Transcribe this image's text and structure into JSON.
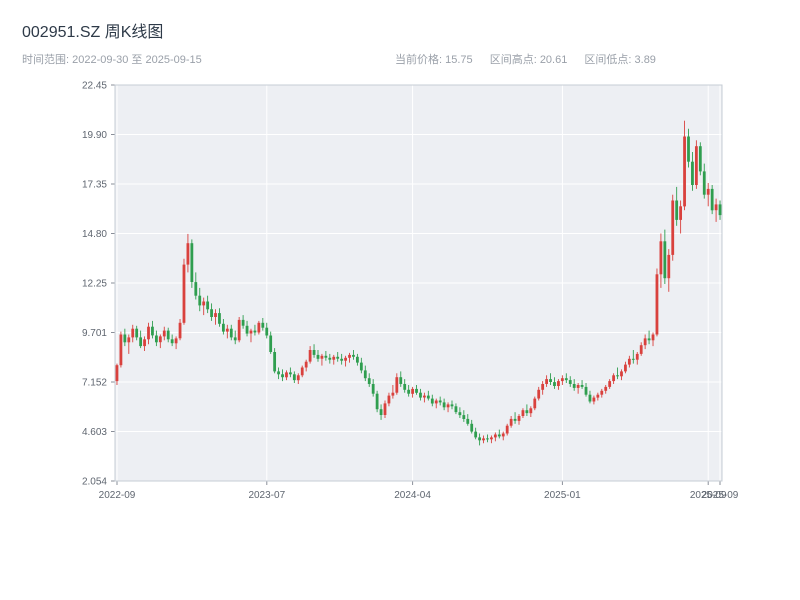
{
  "header": {
    "title": "002951.SZ 周K线图",
    "time_range_label": "时间范围: 2022-09-30 至 2025-09-15",
    "stats": [
      "当前价格: 15.75",
      "区间高点: 20.61",
      "区间低点: 3.89"
    ]
  },
  "chart_data": {
    "type": "candlestick",
    "title": "002951.SZ 周K线图",
    "interval": "weekly",
    "time_range": [
      "2022-09-30",
      "2025-09-15"
    ],
    "current_price": 15.75,
    "range_high": 20.61,
    "range_low": 3.89,
    "ylim": [
      2.054,
      22.45
    ],
    "grid": true,
    "y_ticks": [
      {
        "value": 2.054,
        "label": "2.054"
      },
      {
        "value": 4.603,
        "label": "4.603"
      },
      {
        "value": 7.152,
        "label": "7.152"
      },
      {
        "value": 9.701,
        "label": "9.701"
      },
      {
        "value": 12.25,
        "label": "12.25"
      },
      {
        "value": 14.8,
        "label": "14.80"
      },
      {
        "value": 17.35,
        "label": "17.35"
      },
      {
        "value": 19.9,
        "label": "19.90"
      },
      {
        "value": 22.45,
        "label": "22.45"
      }
    ],
    "x_ticks": [
      {
        "index": 0,
        "label": "2022-09"
      },
      {
        "index": 38,
        "label": "2023-07"
      },
      {
        "index": 75,
        "label": "2024-04"
      },
      {
        "index": 113,
        "label": "2025-01"
      },
      {
        "index": 150,
        "label": "2025-09"
      },
      {
        "index": 153,
        "label": "2025-09"
      }
    ],
    "colors": {
      "up": "#d9413d",
      "down": "#2f9e4f",
      "plot_bg": "#edeff3",
      "grid": "#ffffff",
      "frame": "#c6ccd4",
      "tick": "#8a8f99"
    },
    "candles": [
      [
        7.2,
        8.1,
        7.0,
        8.02
      ],
      [
        8.02,
        9.75,
        7.9,
        9.6
      ],
      [
        9.6,
        9.9,
        9.0,
        9.2
      ],
      [
        9.2,
        9.6,
        8.6,
        9.45
      ],
      [
        9.45,
        10.1,
        9.2,
        9.9
      ],
      [
        9.9,
        10.05,
        9.3,
        9.45
      ],
      [
        9.45,
        9.8,
        8.9,
        9.0
      ],
      [
        9.0,
        9.5,
        8.75,
        9.35
      ],
      [
        9.35,
        10.2,
        9.1,
        10.0
      ],
      [
        10.0,
        10.3,
        9.4,
        9.55
      ],
      [
        9.55,
        9.8,
        9.0,
        9.2
      ],
      [
        9.2,
        9.6,
        8.9,
        9.5
      ],
      [
        9.5,
        10.0,
        9.3,
        9.8
      ],
      [
        9.8,
        9.95,
        9.2,
        9.35
      ],
      [
        9.35,
        9.6,
        9.0,
        9.15
      ],
      [
        9.15,
        9.5,
        8.85,
        9.4
      ],
      [
        9.4,
        10.4,
        9.3,
        10.2
      ],
      [
        10.2,
        13.5,
        10.1,
        13.2
      ],
      [
        13.2,
        14.78,
        12.8,
        14.3
      ],
      [
        14.3,
        14.5,
        12.0,
        12.3
      ],
      [
        12.3,
        12.8,
        11.4,
        11.6
      ],
      [
        11.6,
        12.0,
        10.8,
        11.1
      ],
      [
        11.1,
        11.5,
        10.6,
        11.3
      ],
      [
        11.3,
        11.6,
        10.7,
        10.9
      ],
      [
        10.9,
        11.2,
        10.3,
        10.5
      ],
      [
        10.5,
        10.9,
        10.1,
        10.7
      ],
      [
        10.7,
        10.95,
        10.0,
        10.15
      ],
      [
        10.15,
        10.4,
        9.6,
        9.75
      ],
      [
        9.75,
        10.1,
        9.4,
        9.9
      ],
      [
        9.9,
        10.1,
        9.3,
        9.45
      ],
      [
        9.45,
        9.8,
        9.1,
        9.3
      ],
      [
        9.3,
        10.5,
        9.2,
        10.35
      ],
      [
        10.35,
        10.6,
        9.9,
        10.05
      ],
      [
        10.05,
        10.3,
        9.5,
        9.65
      ],
      [
        9.65,
        9.9,
        9.2,
        9.8
      ],
      [
        9.8,
        10.1,
        9.55,
        9.7
      ],
      [
        9.7,
        10.3,
        9.6,
        10.2
      ],
      [
        10.2,
        10.45,
        9.8,
        9.95
      ],
      [
        9.95,
        10.2,
        9.4,
        9.55
      ],
      [
        9.55,
        9.75,
        8.6,
        8.7
      ],
      [
        8.7,
        8.9,
        7.6,
        7.7
      ],
      [
        7.7,
        7.9,
        7.3,
        7.55
      ],
      [
        7.55,
        7.8,
        7.2,
        7.4
      ],
      [
        7.4,
        7.75,
        7.25,
        7.65
      ],
      [
        7.65,
        7.9,
        7.4,
        7.55
      ],
      [
        7.55,
        7.7,
        7.1,
        7.25
      ],
      [
        7.25,
        7.6,
        7.05,
        7.5
      ],
      [
        7.5,
        8.0,
        7.4,
        7.9
      ],
      [
        7.9,
        8.3,
        7.7,
        8.2
      ],
      [
        8.2,
        9.0,
        8.1,
        8.8
      ],
      [
        8.8,
        9.1,
        8.4,
        8.55
      ],
      [
        8.55,
        8.8,
        8.2,
        8.35
      ],
      [
        8.35,
        8.6,
        8.0,
        8.5
      ],
      [
        8.5,
        8.75,
        8.25,
        8.4
      ],
      [
        8.4,
        8.6,
        8.1,
        8.3
      ],
      [
        8.3,
        8.55,
        8.05,
        8.45
      ],
      [
        8.45,
        8.7,
        8.2,
        8.35
      ],
      [
        8.35,
        8.6,
        8.05,
        8.25
      ],
      [
        8.25,
        8.5,
        7.95,
        8.4
      ],
      [
        8.4,
        8.65,
        8.15,
        8.55
      ],
      [
        8.55,
        8.8,
        8.3,
        8.45
      ],
      [
        8.45,
        8.6,
        8.0,
        8.15
      ],
      [
        8.15,
        8.4,
        7.6,
        7.75
      ],
      [
        7.75,
        8.0,
        7.2,
        7.35
      ],
      [
        7.35,
        7.6,
        6.9,
        7.05
      ],
      [
        7.05,
        7.3,
        6.4,
        6.55
      ],
      [
        6.55,
        6.7,
        5.6,
        5.75
      ],
      [
        5.75,
        6.0,
        5.2,
        5.45
      ],
      [
        5.45,
        6.2,
        5.3,
        6.05
      ],
      [
        6.05,
        6.6,
        5.9,
        6.45
      ],
      [
        6.45,
        7.0,
        6.3,
        6.6
      ],
      [
        6.6,
        7.6,
        6.5,
        7.4
      ],
      [
        7.4,
        7.7,
        6.9,
        7.05
      ],
      [
        7.05,
        7.3,
        6.6,
        6.75
      ],
      [
        6.75,
        7.0,
        6.4,
        6.55
      ],
      [
        6.55,
        6.9,
        6.35,
        6.8
      ],
      [
        6.8,
        7.0,
        6.5,
        6.6
      ],
      [
        6.6,
        6.8,
        6.2,
        6.35
      ],
      [
        6.35,
        6.6,
        6.1,
        6.45
      ],
      [
        6.45,
        6.7,
        6.2,
        6.3
      ],
      [
        6.3,
        6.5,
        5.9,
        6.05
      ],
      [
        6.05,
        6.3,
        5.8,
        6.2
      ],
      [
        6.2,
        6.4,
        5.95,
        6.1
      ],
      [
        6.1,
        6.3,
        5.7,
        5.85
      ],
      [
        5.85,
        6.1,
        5.6,
        6.0
      ],
      [
        6.0,
        6.2,
        5.75,
        5.9
      ],
      [
        5.9,
        6.05,
        5.5,
        5.6
      ],
      [
        5.6,
        5.85,
        5.3,
        5.45
      ],
      [
        5.45,
        5.7,
        5.1,
        5.25
      ],
      [
        5.25,
        5.5,
        4.9,
        5.0
      ],
      [
        5.0,
        5.2,
        4.5,
        4.6
      ],
      [
        4.6,
        4.8,
        4.2,
        4.3
      ],
      [
        4.3,
        4.5,
        3.89,
        4.15
      ],
      [
        4.15,
        4.4,
        4.0,
        4.25
      ],
      [
        4.25,
        4.45,
        4.05,
        4.2
      ],
      [
        4.2,
        4.4,
        4.0,
        4.3
      ],
      [
        4.3,
        4.55,
        4.1,
        4.45
      ],
      [
        4.45,
        4.7,
        4.25,
        4.35
      ],
      [
        4.35,
        4.6,
        4.15,
        4.5
      ],
      [
        4.5,
        5.0,
        4.4,
        4.9
      ],
      [
        4.9,
        5.4,
        4.8,
        5.25
      ],
      [
        5.25,
        5.6,
        5.0,
        5.15
      ],
      [
        5.15,
        5.5,
        4.95,
        5.4
      ],
      [
        5.4,
        5.8,
        5.3,
        5.7
      ],
      [
        5.7,
        6.0,
        5.4,
        5.55
      ],
      [
        5.55,
        5.9,
        5.35,
        5.8
      ],
      [
        5.8,
        6.4,
        5.7,
        6.3
      ],
      [
        6.3,
        6.9,
        6.2,
        6.75
      ],
      [
        6.75,
        7.2,
        6.5,
        7.05
      ],
      [
        7.05,
        7.5,
        6.9,
        7.3
      ],
      [
        7.3,
        7.6,
        7.0,
        7.15
      ],
      [
        7.15,
        7.4,
        6.8,
        6.95
      ],
      [
        6.95,
        7.3,
        6.75,
        7.2
      ],
      [
        7.2,
        7.5,
        7.0,
        7.35
      ],
      [
        7.35,
        7.6,
        7.1,
        7.25
      ],
      [
        7.25,
        7.45,
        6.9,
        7.05
      ],
      [
        7.05,
        7.3,
        6.7,
        6.85
      ],
      [
        6.85,
        7.1,
        6.55,
        7.0
      ],
      [
        7.0,
        7.25,
        6.8,
        6.9
      ],
      [
        6.9,
        7.1,
        6.4,
        6.5
      ],
      [
        6.5,
        6.7,
        6.05,
        6.15
      ],
      [
        6.15,
        6.45,
        6.0,
        6.35
      ],
      [
        6.35,
        6.6,
        6.2,
        6.5
      ],
      [
        6.5,
        6.8,
        6.35,
        6.7
      ],
      [
        6.7,
        7.0,
        6.55,
        6.9
      ],
      [
        6.9,
        7.3,
        6.8,
        7.2
      ],
      [
        7.2,
        7.6,
        7.05,
        7.5
      ],
      [
        7.5,
        7.9,
        7.3,
        7.45
      ],
      [
        7.45,
        7.8,
        7.25,
        7.7
      ],
      [
        7.7,
        8.2,
        7.6,
        8.05
      ],
      [
        8.05,
        8.5,
        7.9,
        8.35
      ],
      [
        8.35,
        8.8,
        8.1,
        8.3
      ],
      [
        8.3,
        8.7,
        8.05,
        8.6
      ],
      [
        8.6,
        9.2,
        8.5,
        9.05
      ],
      [
        9.05,
        9.6,
        8.85,
        9.4
      ],
      [
        9.4,
        9.8,
        9.1,
        9.3
      ],
      [
        9.3,
        9.7,
        9.0,
        9.6
      ],
      [
        9.6,
        13.0,
        9.5,
        12.7
      ],
      [
        12.7,
        14.8,
        12.0,
        14.4
      ],
      [
        14.4,
        15.0,
        12.2,
        12.5
      ],
      [
        12.5,
        14.0,
        11.8,
        13.7
      ],
      [
        13.7,
        16.8,
        13.4,
        16.5
      ],
      [
        16.5,
        17.2,
        15.2,
        15.5
      ],
      [
        15.5,
        16.5,
        14.8,
        16.2
      ],
      [
        16.2,
        20.61,
        16.0,
        19.8
      ],
      [
        19.8,
        20.2,
        18.2,
        18.5
      ],
      [
        18.5,
        19.0,
        17.0,
        17.3
      ],
      [
        17.3,
        19.6,
        17.1,
        19.3
      ],
      [
        19.3,
        19.5,
        17.8,
        18.0
      ],
      [
        18.0,
        18.4,
        16.6,
        16.8
      ],
      [
        16.8,
        17.4,
        16.2,
        17.1
      ],
      [
        17.1,
        17.3,
        15.8,
        16.0
      ],
      [
        16.0,
        16.6,
        15.4,
        16.3
      ],
      [
        16.3,
        16.5,
        15.5,
        15.75
      ]
    ]
  }
}
